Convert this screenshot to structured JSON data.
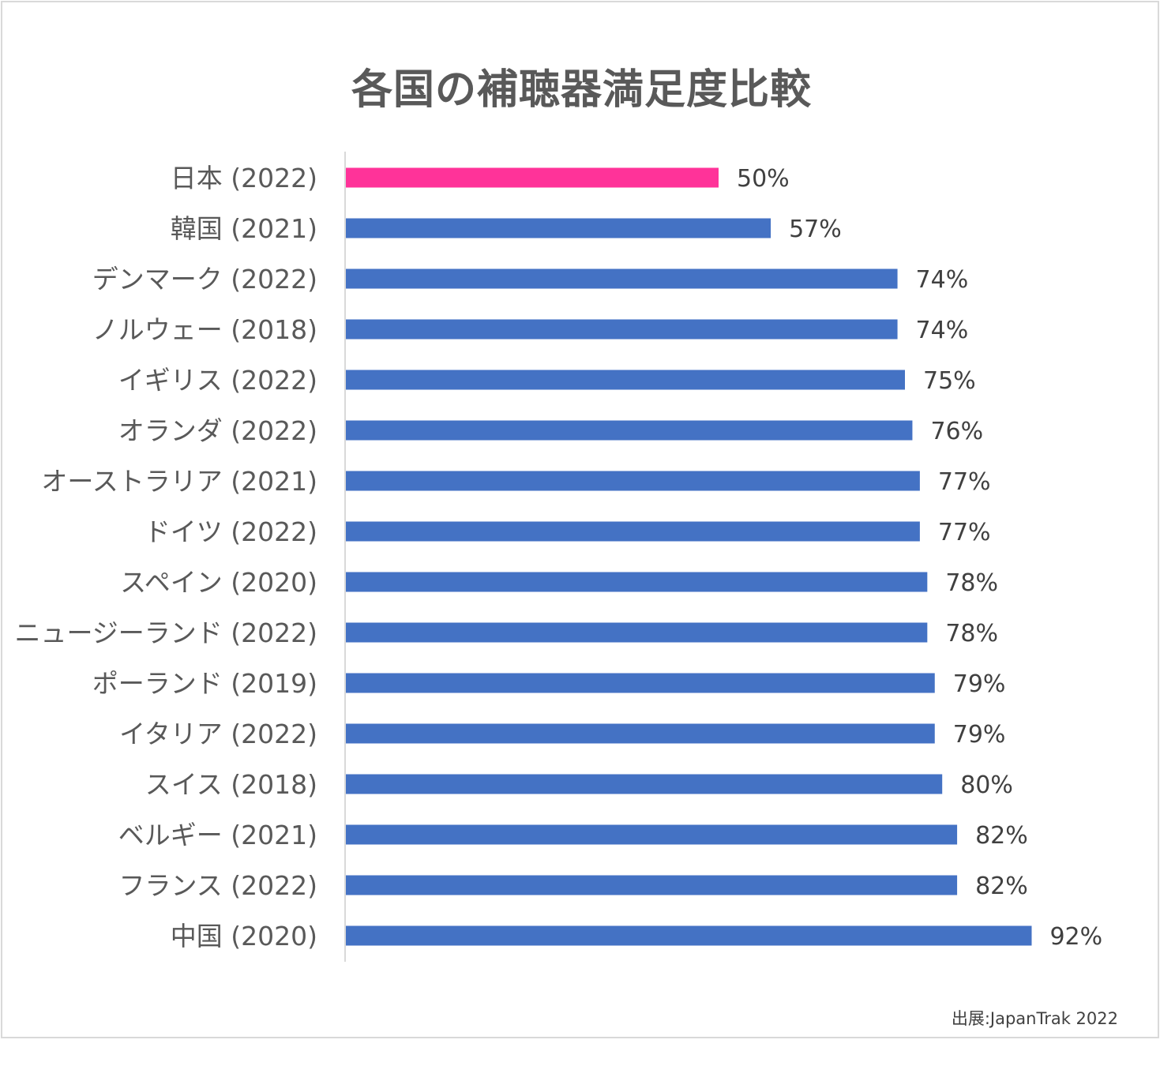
{
  "chart_data": {
    "type": "bar",
    "orientation": "horizontal",
    "title": "各国の補聴器満足度比較",
    "xlabel": "",
    "ylabel": "",
    "xlim": [
      0,
      100
    ],
    "grid": false,
    "legend": "none",
    "highlight_color": "#ff3399",
    "bar_color": "#4472c4",
    "categories": [
      "日本 (2022)",
      "韓国 (2021)",
      "デンマーク (2022)",
      "ノルウェー (2018)",
      "イギリス (2022)",
      "オランダ (2022)",
      "オーストラリア (2021)",
      "ドイツ (2022)",
      "スペイン (2020)",
      "ニュージーランド (2022)",
      "ポーランド (2019)",
      "イタリア (2022)",
      "スイス (2018)",
      "ベルギー (2021)",
      "フランス (2022)",
      "中国 (2020)"
    ],
    "values": [
      50,
      57,
      74,
      74,
      75,
      76,
      77,
      77,
      78,
      78,
      79,
      79,
      80,
      82,
      82,
      92
    ],
    "data_labels": [
      "50%",
      "57%",
      "74%",
      "74%",
      "75%",
      "76%",
      "77%",
      "77%",
      "78%",
      "78%",
      "79%",
      "79%",
      "80%",
      "82%",
      "82%",
      "92%"
    ],
    "highlighted_category": "日本 (2022)",
    "source": "出展:JapanTrak 2022"
  }
}
